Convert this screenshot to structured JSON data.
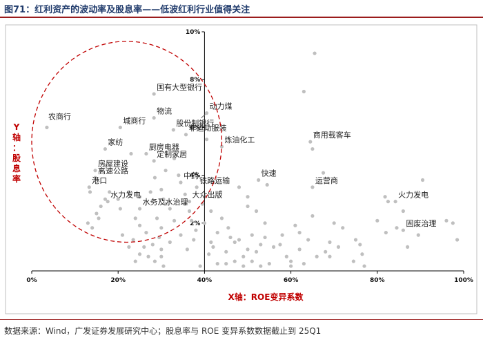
{
  "header": {
    "title": "图71：红利资产的波动率及股息率——低波红利行业值得关注"
  },
  "footer": {
    "source": "数据来源：Wind，广发证券发展研究中心；股息率与 ROE 变异系数数据截止到 25Q1"
  },
  "colors": {
    "point": "#bfbfbf",
    "axis_title": "#c00000",
    "circle": "#c00000",
    "title": "#1f3a6b"
  },
  "chart_data": {
    "type": "scatter",
    "title": "",
    "xlabel": "X轴：ROE变异系数",
    "ylabel_chars": [
      "Y",
      "轴",
      "：",
      "股",
      "息",
      "率"
    ],
    "xlim": [
      0,
      1.0
    ],
    "ylim": [
      0,
      0.1
    ],
    "x_ticks": [
      {
        "value": 0,
        "label": "0%"
      },
      {
        "value": 0.2,
        "label": "20%"
      },
      {
        "value": 0.4,
        "label": "40%"
      },
      {
        "value": 0.6,
        "label": "60%"
      },
      {
        "value": 0.8,
        "label": "80%"
      },
      {
        "value": 1.0,
        "label": "100%"
      }
    ],
    "y_ticks": [
      {
        "value": 0.02,
        "label": "2%"
      },
      {
        "value": 0.04,
        "label": "4%"
      },
      {
        "value": 0.06,
        "label": "6%"
      },
      {
        "value": 0.08,
        "label": "8%"
      },
      {
        "value": 0.1,
        "label": "10%"
      }
    ],
    "grid": false,
    "labeled_points": [
      {
        "label": "农商行",
        "x": 0.035,
        "y": 0.06
      },
      {
        "label": "城商行",
        "x": 0.205,
        "y": 0.06
      },
      {
        "label": "国有大型银行",
        "x": 0.283,
        "y": 0.074
      },
      {
        "label": "物流",
        "x": 0.283,
        "y": 0.064
      },
      {
        "label": "动力煤",
        "x": 0.405,
        "y": 0.066
      },
      {
        "label": "家纺",
        "x": 0.17,
        "y": 0.051
      },
      {
        "label": "股份制银行",
        "x": 0.328,
        "y": 0.059
      },
      {
        "label": "非运动服装",
        "x": 0.357,
        "y": 0.057
      },
      {
        "label": "炼油化工",
        "x": 0.44,
        "y": 0.052
      },
      {
        "label": "厨房电器",
        "x": 0.265,
        "y": 0.049
      },
      {
        "label": "定制家居",
        "x": 0.283,
        "y": 0.046
      },
      {
        "label": "房屋建设",
        "x": 0.147,
        "y": 0.042
      },
      {
        "label": "高速公路",
        "x": 0.147,
        "y": 0.039
      },
      {
        "label": "中药",
        "x": 0.345,
        "y": 0.037
      },
      {
        "label": "快速",
        "x": 0.525,
        "y": 0.038
      },
      {
        "label": "商用载客车",
        "x": 0.645,
        "y": 0.054
      },
      {
        "label": "港口",
        "x": 0.133,
        "y": 0.035
      },
      {
        "label": "铁路运输",
        "x": 0.382,
        "y": 0.035
      },
      {
        "label": "运营商",
        "x": 0.65,
        "y": 0.035
      },
      {
        "label": "火力发电",
        "x": 0.842,
        "y": 0.029
      },
      {
        "label": "水力发电",
        "x": 0.176,
        "y": 0.029
      },
      {
        "label": "大众出版",
        "x": 0.365,
        "y": 0.029
      },
      {
        "label": "水务及水治理",
        "x": 0.25,
        "y": 0.026
      },
      {
        "label": "固废治理",
        "x": 0.86,
        "y": 0.017
      }
    ],
    "other_points": [
      [
        0.655,
        0.091
      ],
      [
        0.63,
        0.075
      ],
      [
        0.405,
        0.055
      ],
      [
        0.65,
        0.051
      ],
      [
        0.675,
        0.041
      ],
      [
        0.905,
        0.038
      ],
      [
        0.545,
        0.036
      ],
      [
        0.818,
        0.031
      ],
      [
        0.825,
        0.029
      ],
      [
        0.86,
        0.025
      ],
      [
        0.96,
        0.021
      ],
      [
        0.975,
        0.02
      ],
      [
        0.985,
        0.013
      ],
      [
        0.82,
        0.016
      ],
      [
        0.845,
        0.018
      ],
      [
        0.87,
        0.01
      ],
      [
        0.895,
        0.015
      ],
      [
        0.65,
        0.023
      ],
      [
        0.7,
        0.02
      ],
      [
        0.72,
        0.018
      ],
      [
        0.69,
        0.012
      ],
      [
        0.71,
        0.01
      ],
      [
        0.68,
        0.008
      ],
      [
        0.66,
        0.006
      ],
      [
        0.64,
        0.013
      ],
      [
        0.61,
        0.019
      ],
      [
        0.62,
        0.009
      ],
      [
        0.59,
        0.006
      ],
      [
        0.6,
        0.004
      ],
      [
        0.75,
        0.013
      ],
      [
        0.765,
        0.007
      ],
      [
        0.745,
        0.004
      ],
      [
        0.63,
        0.003
      ],
      [
        0.58,
        0.015
      ],
      [
        0.56,
        0.01
      ],
      [
        0.54,
        0.02
      ],
      [
        0.52,
        0.025
      ],
      [
        0.51,
        0.015
      ],
      [
        0.5,
        0.009
      ],
      [
        0.49,
        0.006
      ],
      [
        0.47,
        0.012
      ],
      [
        0.455,
        0.018
      ],
      [
        0.44,
        0.022
      ],
      [
        0.43,
        0.016
      ],
      [
        0.42,
        0.01
      ],
      [
        0.41,
        0.007
      ],
      [
        0.4,
        0.02
      ],
      [
        0.395,
        0.028
      ],
      [
        0.415,
        0.025
      ],
      [
        0.45,
        0.008
      ],
      [
        0.47,
        0.004
      ],
      [
        0.48,
        0.013
      ],
      [
        0.53,
        0.011
      ],
      [
        0.55,
        0.003
      ],
      [
        0.53,
        0.002
      ],
      [
        0.51,
        0.004
      ],
      [
        0.49,
        0.002
      ],
      [
        0.45,
        0.003
      ],
      [
        0.43,
        0.003
      ],
      [
        0.415,
        0.012
      ],
      [
        0.437,
        0.033
      ],
      [
        0.42,
        0.037
      ],
      [
        0.5,
        0.031
      ],
      [
        0.5,
        0.027
      ],
      [
        0.48,
        0.035
      ],
      [
        0.355,
        0.032
      ],
      [
        0.355,
        0.028
      ],
      [
        0.365,
        0.025
      ],
      [
        0.37,
        0.021
      ],
      [
        0.38,
        0.017
      ],
      [
        0.375,
        0.013
      ],
      [
        0.36,
        0.009
      ],
      [
        0.345,
        0.015
      ],
      [
        0.33,
        0.021
      ],
      [
        0.32,
        0.026
      ],
      [
        0.31,
        0.028
      ],
      [
        0.305,
        0.03
      ],
      [
        0.3,
        0.034
      ],
      [
        0.285,
        0.039
      ],
      [
        0.31,
        0.042
      ],
      [
        0.34,
        0.04
      ],
      [
        0.29,
        0.022
      ],
      [
        0.3,
        0.018
      ],
      [
        0.295,
        0.014
      ],
      [
        0.28,
        0.011
      ],
      [
        0.265,
        0.016
      ],
      [
        0.25,
        0.019
      ],
      [
        0.24,
        0.022
      ],
      [
        0.235,
        0.013
      ],
      [
        0.225,
        0.01
      ],
      [
        0.21,
        0.015
      ],
      [
        0.205,
        0.026
      ],
      [
        0.2,
        0.03
      ],
      [
        0.18,
        0.033
      ],
      [
        0.17,
        0.03
      ],
      [
        0.16,
        0.027
      ],
      [
        0.155,
        0.022
      ],
      [
        0.15,
        0.024
      ],
      [
        0.14,
        0.018
      ],
      [
        0.13,
        0.02
      ],
      [
        0.16,
        0.042
      ],
      [
        0.17,
        0.044
      ],
      [
        0.135,
        0.033
      ],
      [
        0.225,
        0.033
      ],
      [
        0.25,
        0.031
      ],
      [
        0.26,
        0.01
      ],
      [
        0.27,
        0.006
      ],
      [
        0.285,
        0.004
      ],
      [
        0.3,
        0.006
      ],
      [
        0.305,
        0.002
      ],
      [
        0.32,
        0.012
      ],
      [
        0.24,
        0.004
      ],
      [
        0.25,
        0.007
      ],
      [
        0.275,
        0.033
      ],
      [
        0.3,
        0.009
      ],
      [
        0.23,
        0.049
      ],
      [
        0.33,
        0.047
      ],
      [
        0.315,
        0.052
      ],
      [
        0.39,
        0.002
      ],
      [
        0.6,
        0.002
      ],
      [
        0.77,
        0.002
      ],
      [
        0.76,
        0.011
      ],
      [
        0.8,
        0.021
      ],
      [
        0.575,
        0.011
      ],
      [
        0.62,
        0.016
      ],
      [
        0.52,
        0.008
      ],
      [
        0.46,
        0.014
      ],
      [
        0.69,
        0.006
      ],
      [
        0.54,
        0.014
      ]
    ],
    "annotation_circle": {
      "cx": 0.22,
      "cy": 0.054,
      "rx": 0.22,
      "ry": 0.042
    }
  }
}
